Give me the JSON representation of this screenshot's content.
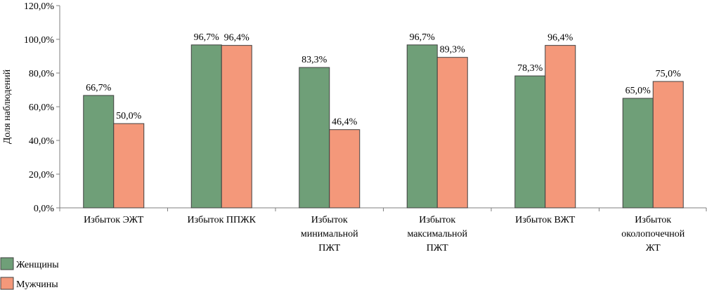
{
  "chart_data": {
    "type": "bar",
    "categories": [
      [
        "Избыток ЭЖТ"
      ],
      [
        "Избыток ППЖК"
      ],
      [
        "Избыток",
        "минимальной",
        "ПЖТ"
      ],
      [
        "Избыток",
        "максимальной",
        "ПЖТ"
      ],
      [
        "Избыток ВЖТ"
      ],
      [
        "Избыток",
        "околопочечной",
        "ЖТ"
      ]
    ],
    "series": [
      {
        "name": "Женщины",
        "color": "#6f9f78",
        "values": [
          66.7,
          96.7,
          83.3,
          96.7,
          78.3,
          65.0
        ],
        "labels": [
          "66,7%",
          "96,7%",
          "83,3%",
          "96,7%",
          "78,3%",
          "65,0%"
        ]
      },
      {
        "name": "Мужчины",
        "color": "#f4987a",
        "values": [
          50.0,
          96.4,
          46.4,
          89.3,
          96.4,
          75.0
        ],
        "labels": [
          "50,0%",
          "96,4%",
          "46,4%",
          "89,3%",
          "96,4%",
          "75,0%"
        ]
      }
    ],
    "ylabel": "Доля наблюдений",
    "ylim": [
      0,
      120
    ],
    "yticks": [
      0,
      20,
      40,
      60,
      80,
      100,
      120
    ],
    "ytick_labels": [
      "0,0%",
      "20,0%",
      "40,0%",
      "60,0%",
      "80,0%",
      "100,0%",
      "120,0%"
    ],
    "grid": false,
    "legend_position": "bottom-left"
  }
}
